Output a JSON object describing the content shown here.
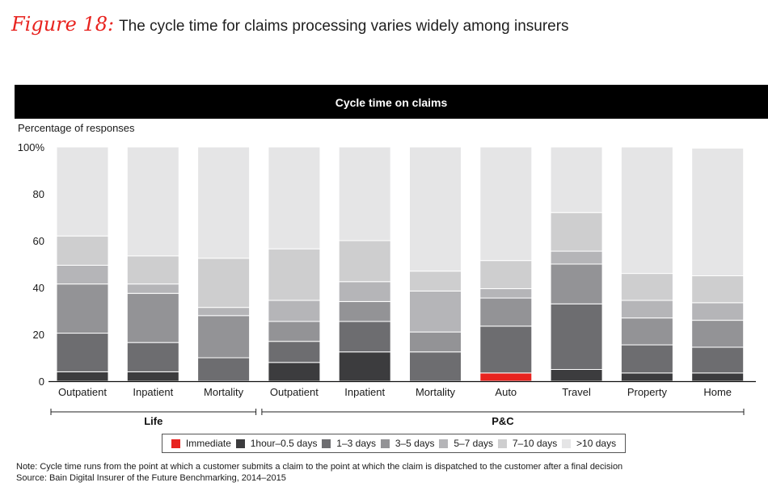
{
  "figure": {
    "label": "Figure 18:",
    "title": "The cycle time for claims processing varies widely among insurers"
  },
  "banner": "Cycle time on claims",
  "chart_data": {
    "type": "bar",
    "stacked": true,
    "ylabel": "Percentage of responses",
    "ylim": [
      0,
      100
    ],
    "yticks": [
      "0",
      "20",
      "40",
      "60",
      "80",
      "100%"
    ],
    "categories": [
      "Outpatient",
      "Inpatient",
      "Mortality",
      "Outpatient",
      "Inpatient",
      "Mortality",
      "Auto",
      "Travel",
      "Property",
      "Home"
    ],
    "groups": [
      {
        "label": "Life",
        "categories": [
          "Outpatient",
          "Inpatient",
          "Mortality"
        ]
      },
      {
        "label": "P&C",
        "categories": [
          "Outpatient",
          "Inpatient",
          "Mortality",
          "Auto",
          "Travel",
          "Property",
          "Home"
        ]
      }
    ],
    "series": [
      {
        "name": "Immediate",
        "color": "#e8231f",
        "values": [
          0,
          0,
          0,
          0,
          0,
          0,
          3.5,
          0,
          0,
          0
        ]
      },
      {
        "name": "1hour–0.5 days",
        "color": "#3c3c3e",
        "values": [
          4,
          4,
          0,
          8,
          12.5,
          0,
          0,
          5,
          3.5,
          3.5
        ]
      },
      {
        "name": "1–3 days",
        "color": "#6d6d70",
        "values": [
          16.5,
          12.5,
          10,
          9,
          13,
          12.5,
          20,
          28,
          12,
          11
        ]
      },
      {
        "name": "3–5 days",
        "color": "#939396",
        "values": [
          21,
          21,
          18,
          8.5,
          8.5,
          8.5,
          12,
          17,
          11.5,
          11.5
        ]
      },
      {
        "name": "5–7 days",
        "color": "#b5b5b8",
        "values": [
          8,
          4,
          3.5,
          9,
          8.5,
          17.5,
          4,
          5.5,
          7.5,
          7.5
        ]
      },
      {
        "name": "7–10 days",
        "color": "#cececf",
        "values": [
          12.5,
          12,
          21,
          22,
          17.5,
          8.5,
          12,
          16.5,
          11.5,
          11.5
        ]
      },
      {
        "name": ">10 days",
        "color": "#e5e5e6",
        "values": [
          38,
          46.5,
          47.5,
          43.5,
          40,
          53,
          48.5,
          28,
          54,
          54.5
        ]
      }
    ]
  },
  "note": "Note: Cycle time runs from the point at which a customer submits a claim to the point at which the claim is dispatched to the customer after a final decision",
  "source": "Source: Bain Digital Insurer of the Future Benchmarking, 2014–2015"
}
